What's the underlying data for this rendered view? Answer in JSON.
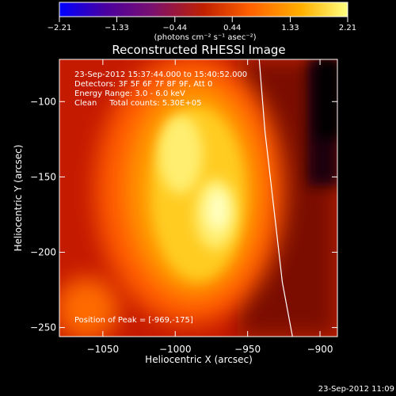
{
  "chart_data": {
    "type": "heatmap",
    "title": "Reconstructed RHESSI Image",
    "xlabel": "Heliocentric X (arcsec)",
    "ylabel": "Heliocentric Y (arcsec)",
    "xlim": [
      -1080,
      -888
    ],
    "ylim": [
      -256,
      -72
    ],
    "x_ticks": [
      -1050,
      -1000,
      -950,
      -900
    ],
    "y_ticks": [
      -100,
      -150,
      -200,
      -250
    ],
    "x_tick_labels": [
      "−1050",
      "−1000",
      "−950",
      "−900"
    ],
    "y_tick_labels": [
      "−100",
      "−150",
      "−200",
      "−250"
    ],
    "colorbar": {
      "min": -2.21,
      "max": 2.21,
      "ticks": [
        -2.21,
        -1.33,
        -0.44,
        0.44,
        1.33,
        2.21
      ],
      "tick_labels": [
        "−2.21",
        "−1.33",
        "−0.44",
        "0.44",
        "1.33",
        "2.21"
      ],
      "unit_label": "(photons cm⁻² s⁻¹ asec⁻²)",
      "colors": [
        "#0000ff",
        "#4a00a0",
        "#7a1070",
        "#c02000",
        "#ff6000",
        "#ffb000",
        "#ffff80"
      ]
    },
    "annotations": [
      "23-Sep-2012 15:37:44.000 to 15:40:52.000",
      "Detectors: 3F 5F 6F 7F 8F 9F, Att 0",
      "Energy Range: 3.0 - 6.0 keV",
      "Clean     Total counts: 5.30E+05"
    ],
    "peak_label": "Position of Peak = [-969,-175]",
    "peak_position": [
      -969,
      -175
    ],
    "limb": {
      "x": [
        -942,
        -938,
        -932,
        -926,
        -919
      ],
      "y": [
        -72,
        -120,
        -170,
        -220,
        -256
      ]
    },
    "timestamp": "23-Sep-2012 11:09"
  }
}
